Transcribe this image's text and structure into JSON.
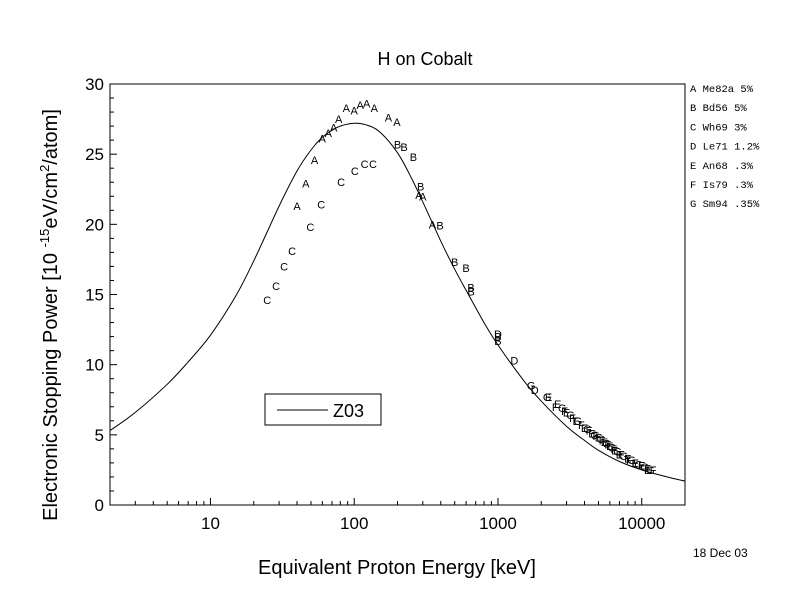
{
  "chart_data": {
    "type": "scatter",
    "title": "H on Cobalt",
    "xlabel": "Equivalent Proton Energy [keV]",
    "ylabel_parts": {
      "before": "Electronic Stopping Power [10 ",
      "exp1": "-15",
      "middle": "eV/cm",
      "exp2": "2",
      "after": "/atom]"
    },
    "xscale": "log",
    "xlim": [
      2,
      20000
    ],
    "ylim": [
      0,
      30
    ],
    "xticks": [
      10,
      100,
      1000,
      10000
    ],
    "xtick_labels": [
      "10",
      "100",
      "1000",
      "10000"
    ],
    "yticks": [
      0,
      5,
      10,
      15,
      20,
      25,
      30
    ],
    "ytick_labels": [
      "0",
      "5",
      "10",
      "15",
      "20",
      "25",
      "30"
    ],
    "grid": false,
    "date": "18 Dec 03",
    "legend": {
      "placement": "lower-center",
      "entries": [
        {
          "name": "Z03",
          "style": "line"
        }
      ]
    },
    "references": [
      {
        "label": "A Me82a   5%"
      },
      {
        "label": "B Bd56    5%"
      },
      {
        "label": "C Wh69    3%"
      },
      {
        "label": "D Le71   1.2%"
      },
      {
        "label": "E An68    .3%"
      },
      {
        "label": "F Is79    .3%"
      },
      {
        "label": "G Sm94   .35%"
      }
    ],
    "curve": {
      "name": "Z03",
      "x": [
        2,
        3,
        5,
        7,
        10,
        15,
        20,
        30,
        40,
        50,
        60,
        70,
        80,
        100,
        120,
        150,
        200,
        250,
        300,
        400,
        500,
        600,
        800,
        1000,
        1500,
        2000,
        3000,
        4000,
        5000,
        7000,
        10000,
        15000,
        20000
      ],
      "y": [
        5.3,
        6.6,
        8.6,
        10.2,
        12.1,
        14.9,
        17.4,
        21.3,
        23.8,
        25.3,
        26.2,
        26.7,
        27.0,
        27.2,
        27.1,
        26.6,
        25.1,
        23.3,
        21.6,
        18.8,
        16.8,
        15.3,
        13.0,
        11.4,
        8.9,
        7.4,
        5.6,
        4.6,
        3.9,
        3.1,
        2.5,
        2.0,
        1.7
      ]
    },
    "series": [
      {
        "name": "A",
        "points": [
          [
            40,
            21.3
          ],
          [
            46,
            22.9
          ],
          [
            53,
            24.6
          ],
          [
            60,
            26.1
          ],
          [
            66,
            26.5
          ],
          [
            72,
            26.9
          ],
          [
            78,
            27.5
          ],
          [
            88,
            28.3
          ],
          [
            100,
            28.1
          ],
          [
            110,
            28.5
          ],
          [
            122,
            28.6
          ],
          [
            138,
            28.3
          ],
          [
            173,
            27.6
          ],
          [
            198,
            27.3
          ],
          [
            282,
            22.1
          ],
          [
            300,
            22.0
          ],
          [
            350,
            20.0
          ]
        ]
      },
      {
        "name": "B",
        "points": [
          [
            200,
            25.7
          ],
          [
            222,
            25.5
          ],
          [
            258,
            24.8
          ],
          [
            290,
            22.7
          ],
          [
            395,
            19.9
          ],
          [
            500,
            17.3
          ],
          [
            600,
            16.9
          ],
          [
            650,
            15.5
          ],
          [
            650,
            15.2
          ],
          [
            1000,
            12.0
          ],
          [
            1000,
            11.7
          ]
        ]
      },
      {
        "name": "C",
        "points": [
          [
            24.8,
            14.6
          ],
          [
            28.6,
            15.6
          ],
          [
            32.5,
            17.0
          ],
          [
            37,
            18.1
          ],
          [
            49.5,
            19.8
          ],
          [
            59,
            21.4
          ],
          [
            81,
            23.0
          ],
          [
            101,
            23.8
          ],
          [
            118,
            24.3
          ],
          [
            135,
            24.3
          ]
        ]
      },
      {
        "name": "D",
        "points": [
          [
            1000,
            12.2
          ],
          [
            1300,
            10.3
          ],
          [
            1800,
            8.2
          ]
        ]
      },
      {
        "name": "E",
        "points": [
          [
            2250,
            7.7
          ],
          [
            2600,
            7.2
          ],
          [
            3000,
            6.6
          ],
          [
            3500,
            6.0
          ],
          [
            4000,
            5.5
          ],
          [
            4500,
            5.1
          ],
          [
            5000,
            4.8
          ],
          [
            5500,
            4.5
          ],
          [
            6000,
            4.2
          ],
          [
            6500,
            3.9
          ],
          [
            7000,
            3.6
          ],
          [
            8000,
            3.3
          ],
          [
            9000,
            3.0
          ],
          [
            10000,
            2.8
          ],
          [
            11000,
            2.5
          ]
        ]
      },
      {
        "name": "F",
        "points": [
          [
            2500,
            7.0
          ],
          [
            2900,
            6.7
          ],
          [
            3300,
            6.2
          ],
          [
            3800,
            5.7
          ],
          [
            4300,
            5.3
          ],
          [
            4800,
            4.9
          ],
          [
            5300,
            4.6
          ],
          [
            5800,
            4.3
          ],
          [
            6400,
            4.0
          ],
          [
            7200,
            3.6
          ],
          [
            8200,
            3.2
          ],
          [
            9000,
            3.0
          ],
          [
            10000,
            2.8
          ],
          [
            11000,
            2.6
          ],
          [
            12000,
            2.5
          ]
        ]
      },
      {
        "name": "G",
        "points": [
          [
            1700,
            8.5
          ],
          [
            2200,
            7.7
          ],
          [
            2800,
            6.9
          ],
          [
            3200,
            6.4
          ],
          [
            3600,
            6.0
          ],
          [
            4200,
            5.4
          ],
          [
            4700,
            5.0
          ],
          [
            5200,
            4.7
          ],
          [
            5700,
            4.4
          ],
          [
            6200,
            4.1
          ],
          [
            6800,
            3.8
          ],
          [
            7500,
            3.5
          ],
          [
            8500,
            3.2
          ],
          [
            9500,
            2.9
          ],
          [
            10500,
            2.7
          ],
          [
            11500,
            2.5
          ]
        ]
      }
    ]
  }
}
